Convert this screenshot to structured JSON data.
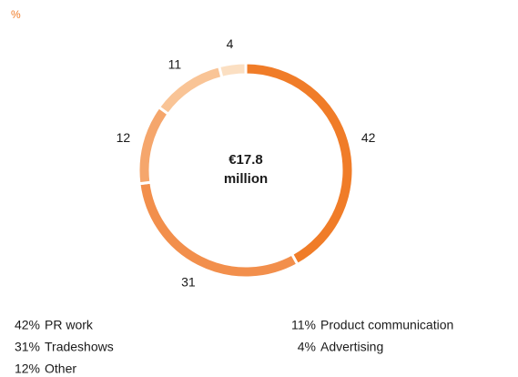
{
  "chart_data": {
    "type": "donut",
    "unit_label": "%",
    "center_text": [
      "€17.8",
      "million"
    ],
    "categories": [
      "PR work",
      "Tradeshows",
      "Other",
      "Product communication",
      "Advertising"
    ],
    "values": [
      42,
      31,
      12,
      11,
      4
    ],
    "value_labels": [
      "42%",
      "31%",
      "12%",
      "11%",
      "4%"
    ],
    "colors": [
      "#f07c28",
      "#f28f4c",
      "#f5a66c",
      "#f9c496",
      "#fbdfc2"
    ]
  }
}
